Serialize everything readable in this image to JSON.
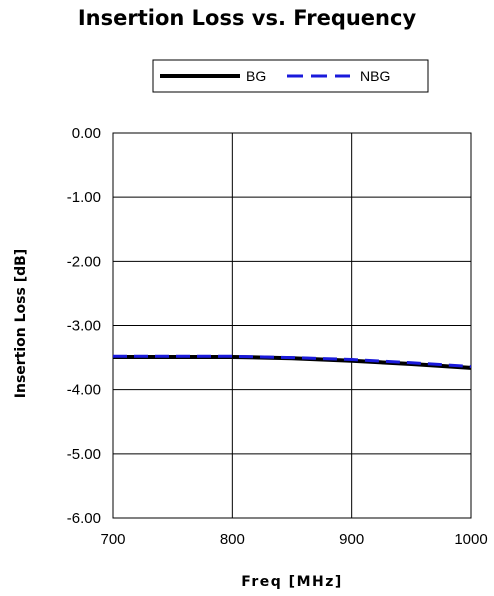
{
  "chart_data": {
    "type": "line",
    "title": "Insertion Loss vs. Frequency",
    "xlabel": "Freq [MHz]",
    "ylabel": "Insertion Loss [dB]",
    "xlim": [
      700,
      1000
    ],
    "ylim": [
      -6,
      0
    ],
    "x_ticks": [
      "700",
      "800",
      "900",
      "1000"
    ],
    "y_ticks": [
      "0.00",
      "-1.00",
      "-2.00",
      "-3.00",
      "-4.00",
      "-5.00",
      "-6.00"
    ],
    "grid": true,
    "legend_position": "top",
    "series": [
      {
        "name": "BG",
        "color": "#000000",
        "style": "solid",
        "x": [
          700,
          750,
          800,
          850,
          900,
          950,
          1000
        ],
        "y": [
          -3.49,
          -3.49,
          -3.49,
          -3.51,
          -3.55,
          -3.6,
          -3.66
        ]
      },
      {
        "name": "NBG",
        "color": "#1a1adb",
        "style": "dashed",
        "x": [
          700,
          750,
          800,
          850,
          900,
          950,
          1000
        ],
        "y": [
          -3.48,
          -3.48,
          -3.48,
          -3.5,
          -3.53,
          -3.58,
          -3.64
        ]
      }
    ]
  }
}
